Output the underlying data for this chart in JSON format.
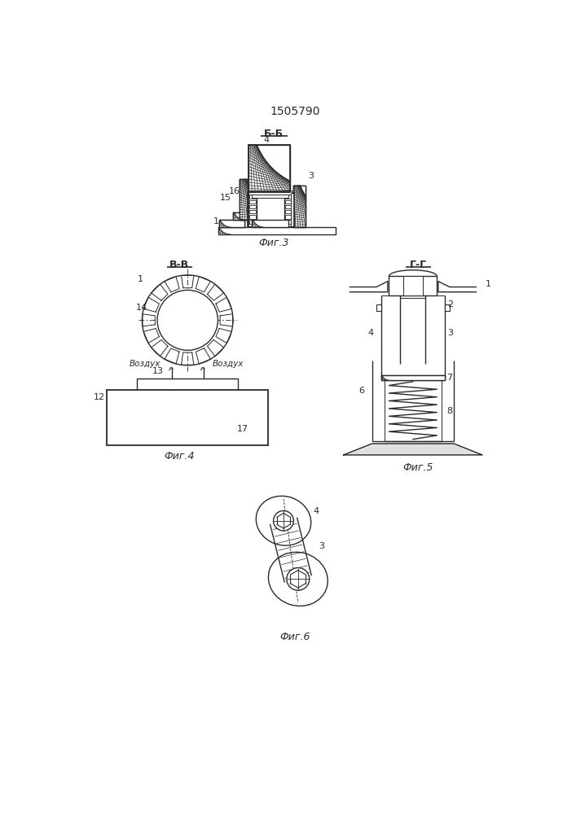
{
  "title_number": "1505790",
  "bg_color": "#ffffff",
  "line_color": "#2a2a2a",
  "fig_labels": {
    "fig3_label": "Фиг.3",
    "fig4_label": "Фиг.4",
    "fig5_label": "Фиг.5",
    "fig6_label": "Фиг.6"
  },
  "section_labels": {
    "bb": "Б-Б",
    "vv": "В-В",
    "gg": "Г-Г"
  },
  "font_sizes": {
    "title": 10,
    "section": 9,
    "fig_label": 9,
    "number": 8
  }
}
